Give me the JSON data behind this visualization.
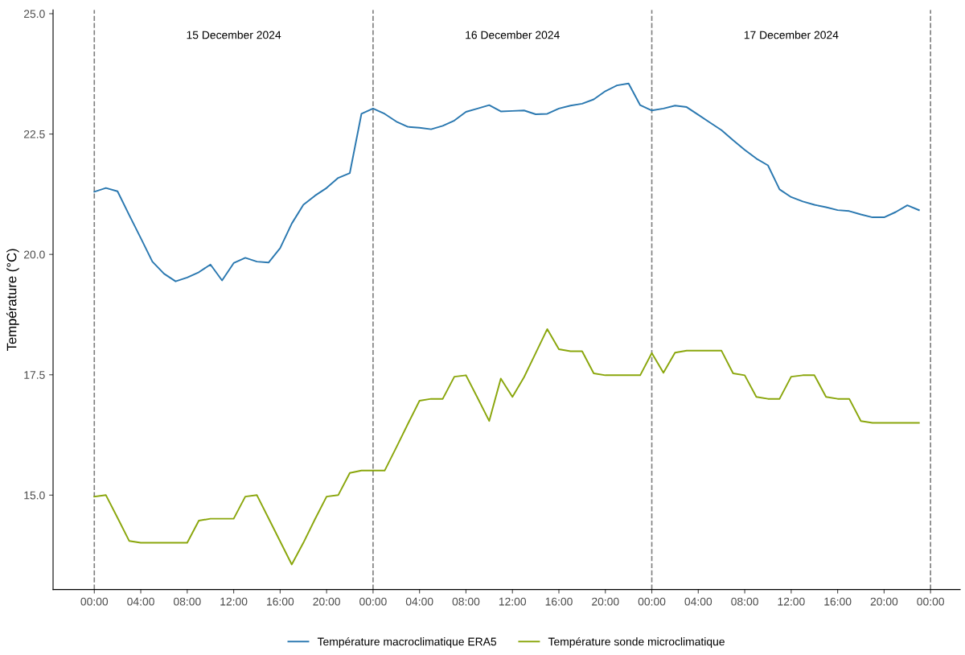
{
  "chart_data": {
    "type": "line",
    "ylabel": "Température (°C)",
    "x": [
      "2024-12-15T00:00",
      "2024-12-15T01:00",
      "2024-12-15T02:00",
      "2024-12-15T03:00",
      "2024-12-15T04:00",
      "2024-12-15T05:00",
      "2024-12-15T06:00",
      "2024-12-15T07:00",
      "2024-12-15T08:00",
      "2024-12-15T09:00",
      "2024-12-15T10:00",
      "2024-12-15T11:00",
      "2024-12-15T12:00",
      "2024-12-15T13:00",
      "2024-12-15T14:00",
      "2024-12-15T15:00",
      "2024-12-15T16:00",
      "2024-12-15T17:00",
      "2024-12-15T18:00",
      "2024-12-15T19:00",
      "2024-12-15T20:00",
      "2024-12-15T21:00",
      "2024-12-15T22:00",
      "2024-12-15T23:00",
      "2024-12-16T00:00",
      "2024-12-16T01:00",
      "2024-12-16T02:00",
      "2024-12-16T03:00",
      "2024-12-16T04:00",
      "2024-12-16T05:00",
      "2024-12-16T06:00",
      "2024-12-16T07:00",
      "2024-12-16T08:00",
      "2024-12-16T09:00",
      "2024-12-16T10:00",
      "2024-12-16T11:00",
      "2024-12-16T12:00",
      "2024-12-16T13:00",
      "2024-12-16T14:00",
      "2024-12-16T15:00",
      "2024-12-16T16:00",
      "2024-12-16T17:00",
      "2024-12-16T18:00",
      "2024-12-16T19:00",
      "2024-12-16T20:00",
      "2024-12-16T21:00",
      "2024-12-16T22:00",
      "2024-12-16T23:00",
      "2024-12-17T00:00",
      "2024-12-17T01:00",
      "2024-12-17T02:00",
      "2024-12-17T03:00",
      "2024-12-17T04:00",
      "2024-12-17T05:00",
      "2024-12-17T06:00",
      "2024-12-17T07:00",
      "2024-12-17T08:00",
      "2024-12-17T09:00",
      "2024-12-17T10:00",
      "2024-12-17T11:00",
      "2024-12-17T12:00",
      "2024-12-17T13:00",
      "2024-12-17T14:00",
      "2024-12-17T15:00",
      "2024-12-17T16:00",
      "2024-12-17T17:00",
      "2024-12-17T18:00",
      "2024-12-17T19:00",
      "2024-12-17T20:00",
      "2024-12-17T21:00",
      "2024-12-17T22:00",
      "2024-12-17T23:00"
    ],
    "series": [
      {
        "name": "Température macroclimatique ERA5",
        "color": "#2a78b0",
        "values": [
          21.3,
          21.38,
          21.31,
          20.82,
          20.34,
          19.85,
          19.6,
          19.44,
          19.52,
          19.63,
          19.79,
          19.46,
          19.82,
          19.93,
          19.85,
          19.83,
          20.13,
          20.64,
          21.03,
          21.22,
          21.38,
          21.59,
          21.69,
          22.92,
          23.03,
          22.92,
          22.76,
          22.65,
          22.63,
          22.6,
          22.67,
          22.78,
          22.96,
          23.03,
          23.1,
          22.97,
          22.98,
          22.99,
          22.91,
          22.92,
          23.03,
          23.09,
          23.13,
          23.22,
          23.39,
          23.51,
          23.55,
          23.1,
          22.99,
          23.03,
          23.09,
          23.06,
          22.9,
          22.74,
          22.58,
          22.37,
          22.17,
          21.99,
          21.85,
          21.35,
          21.19,
          21.1,
          21.03,
          20.98,
          20.92,
          20.9,
          20.83,
          20.77,
          20.77,
          20.88,
          21.02,
          20.92
        ]
      },
      {
        "name": "Température sonde microclimatique",
        "color": "#8aa60c",
        "values": [
          14.97,
          15.0,
          14.53,
          14.05,
          14.01,
          14.01,
          14.01,
          14.01,
          14.01,
          14.47,
          14.51,
          14.51,
          14.51,
          14.97,
          15.0,
          14.52,
          14.04,
          13.56,
          14.01,
          14.5,
          14.97,
          15.0,
          15.46,
          15.51,
          15.51,
          15.51,
          15.99,
          16.48,
          16.96,
          17.0,
          17.0,
          17.46,
          17.49,
          17.02,
          16.54,
          17.42,
          17.04,
          17.45,
          17.95,
          18.45,
          18.03,
          17.99,
          17.99,
          17.53,
          17.49,
          17.49,
          17.49,
          17.49,
          17.95,
          17.54,
          17.96,
          18.0,
          18.0,
          18.0,
          18.0,
          17.53,
          17.49,
          17.04,
          17.0,
          17.0,
          17.46,
          17.49,
          17.49,
          17.04,
          17.0,
          17.0,
          16.54,
          16.5,
          16.5,
          16.5,
          16.5,
          16.5
        ]
      }
    ],
    "xlim": [
      "2024-12-14T20:27",
      "2024-12-18T02:33"
    ],
    "xticks": [
      {
        "value": "2024-12-15T00:00",
        "label": "00:00"
      },
      {
        "value": "2024-12-15T04:00",
        "label": "04:00"
      },
      {
        "value": "2024-12-15T08:00",
        "label": "08:00"
      },
      {
        "value": "2024-12-15T12:00",
        "label": "12:00"
      },
      {
        "value": "2024-12-15T16:00",
        "label": "16:00"
      },
      {
        "value": "2024-12-15T20:00",
        "label": "20:00"
      },
      {
        "value": "2024-12-16T00:00",
        "label": "00:00"
      },
      {
        "value": "2024-12-16T04:00",
        "label": "04:00"
      },
      {
        "value": "2024-12-16T08:00",
        "label": "08:00"
      },
      {
        "value": "2024-12-16T12:00",
        "label": "12:00"
      },
      {
        "value": "2024-12-16T16:00",
        "label": "16:00"
      },
      {
        "value": "2024-12-16T20:00",
        "label": "20:00"
      },
      {
        "value": "2024-12-17T00:00",
        "label": "00:00"
      },
      {
        "value": "2024-12-17T04:00",
        "label": "04:00"
      },
      {
        "value": "2024-12-17T08:00",
        "label": "08:00"
      },
      {
        "value": "2024-12-17T12:00",
        "label": "12:00"
      },
      {
        "value": "2024-12-17T16:00",
        "label": "16:00"
      },
      {
        "value": "2024-12-17T20:00",
        "label": "20:00"
      },
      {
        "value": "2024-12-18T00:00",
        "label": "00:00"
      }
    ],
    "ylim": [
      13.04,
      25.08
    ],
    "yticks": [
      {
        "value": 15,
        "label": "15.0"
      },
      {
        "value": 17.5,
        "label": "17.5"
      },
      {
        "value": 20,
        "label": "20.0"
      },
      {
        "value": 22.5,
        "label": "22.5"
      },
      {
        "value": 25,
        "label": "25.0"
      }
    ],
    "ref_lines": [
      {
        "axis": "x",
        "value": "2024-12-15T00:00",
        "color": "#808080",
        "line_style": "dashed"
      },
      {
        "axis": "x",
        "value": "2024-12-16T00:00",
        "color": "#808080",
        "line_style": "dashed"
      },
      {
        "axis": "x",
        "value": "2024-12-17T00:00",
        "color": "#808080",
        "line_style": "dashed"
      },
      {
        "axis": "x",
        "value": "2024-12-18T00:00",
        "color": "#808080",
        "line_style": "dashed"
      }
    ],
    "annotations": [
      "15 December 2024",
      "16 December 2024",
      "17 December 2024"
    ],
    "grid": false,
    "legend": "bottom",
    "marker": "none",
    "line_style": "solid"
  }
}
